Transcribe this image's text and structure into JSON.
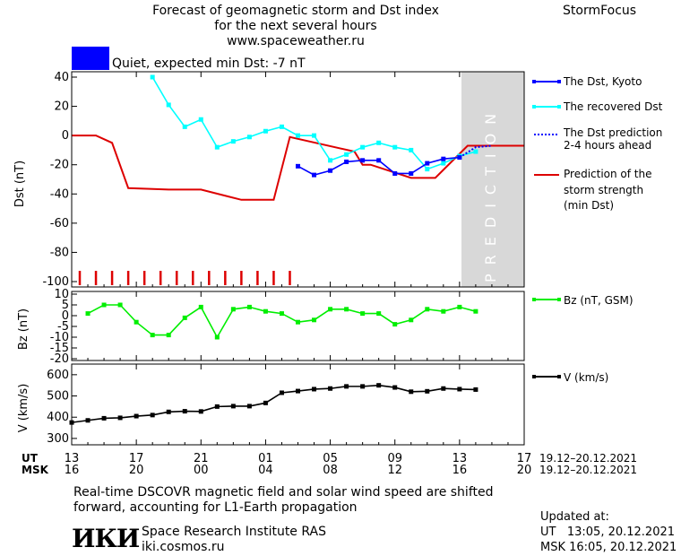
{
  "header": {
    "title_line1": "Forecast of geomagnetic storm and Dst index",
    "title_line2": "for the next several hours",
    "url": "www.spaceweather.ru",
    "brand": "StormFocus",
    "status_text": "Quiet, expected min Dst: -7 nT",
    "status_color": "#0000ff"
  },
  "legend": {
    "dst_kyoto": "The Dst, Kyoto",
    "dst_recovered": "The recovered Dst",
    "dst_prediction_1": "The Dst prediction",
    "dst_prediction_2": "2-4 hours ahead",
    "strength_1": "Prediction of the",
    "strength_2": "storm strength",
    "strength_3": "(min Dst)",
    "bz": "Bz (nT, GSM)",
    "v": "V (km/s)"
  },
  "prediction_label": "PREDICTION",
  "time_axis": {
    "ut_label": "UT",
    "msk_label": "MSK",
    "ut_ticks": [
      "13",
      "17",
      "21",
      "01",
      "05",
      "09",
      "13",
      "17"
    ],
    "msk_ticks": [
      "16",
      "20",
      "00",
      "04",
      "08",
      "12",
      "16",
      "20"
    ],
    "ut_range": "19.12–20.12.2021",
    "msk_range": "19.12–20.12.2021"
  },
  "footer": {
    "note_line1": "Real-time DSCOVR magnetic field and solar wind speed are shifted",
    "note_line2": "forward, accounting for L1-Earth propagation",
    "logo_text": "ИКИ",
    "institute": "Space Research Institute RAS",
    "site": "iki.cosmos.ru",
    "updated_label": "Updated at:",
    "updated_ut": "UT   13:05, 20.12.2021",
    "updated_msk": "MSK 16:05, 20.12.2021"
  },
  "colors": {
    "kyoto": "#0000ff",
    "recovered": "#00ffff",
    "prediction": "#0000ff",
    "strength": "#dd0000",
    "bz": "#00ee00",
    "v": "#000000",
    "prediction_band": "#d8d8d8"
  },
  "chart_data": [
    {
      "type": "line",
      "ylabel": "Dst (nT)",
      "ylim": [
        -100,
        40
      ],
      "yticks": [
        40,
        20,
        0,
        -20,
        -40,
        -60,
        -80,
        -100
      ],
      "x_unit": "hours since 13 UT 19.12.2021",
      "xlim": [
        0,
        28
      ],
      "prediction_band": [
        24.5,
        28
      ],
      "series": [
        {
          "name": "The Dst, Kyoto",
          "x": [
            14,
            15,
            16,
            17,
            18,
            19,
            20,
            21,
            22,
            23,
            24
          ],
          "y": [
            -21,
            -27,
            -24,
            -18,
            -17,
            -17,
            -26,
            -26,
            -19,
            -16,
            -15
          ]
        },
        {
          "name": "The recovered Dst",
          "x": [
            5,
            6,
            7,
            8,
            9,
            10,
            11,
            12,
            13,
            14,
            15,
            16,
            17,
            18,
            19,
            20,
            21,
            22,
            23,
            24,
            25
          ],
          "y": [
            40,
            21,
            6,
            11,
            -8,
            -4,
            -1,
            3,
            6,
            0,
            0,
            -17,
            -13,
            -8,
            -5,
            -8,
            -10,
            -23,
            -19,
            -14,
            -11
          ]
        },
        {
          "name": "The Dst prediction 2-4 hours ahead",
          "x": [
            24,
            25,
            26
          ],
          "y": [
            -15,
            -8,
            -7
          ]
        },
        {
          "name": "Prediction of the storm strength (min Dst)",
          "x": [
            0,
            1.5,
            2.5,
            3.5,
            6,
            8,
            10.5,
            11,
            12.5,
            13.5,
            17.5,
            18,
            18.5,
            21,
            22.5,
            24.5,
            28
          ],
          "y": [
            0,
            0,
            -5,
            -36,
            -37,
            -37,
            -44,
            -44,
            -44,
            -1,
            -11,
            -20,
            -20,
            -29,
            -29,
            -7,
            -7
          ]
        }
      ],
      "markers": {
        "name": "red ticks",
        "x": [
          0.5,
          1.5,
          2.5,
          3.5,
          4.5,
          5.5,
          6.5,
          7.5,
          8.5,
          9.5,
          10.5,
          11.5,
          12.5,
          13.5
        ]
      }
    },
    {
      "type": "line",
      "ylabel": "Bz (nT)",
      "ylim": [
        -20,
        10
      ],
      "yticks": [
        10,
        5,
        0,
        -5,
        -10,
        -15,
        -20
      ],
      "series": [
        {
          "name": "Bz (nT, GSM)",
          "x": [
            1,
            2,
            3,
            4,
            5,
            6,
            7,
            8,
            9,
            10,
            11,
            12,
            13,
            14,
            15,
            16,
            17,
            18,
            19,
            20,
            21,
            22,
            23,
            24,
            25
          ],
          "y": [
            1,
            5,
            5,
            -3,
            -9,
            -9,
            -1,
            4,
            -10,
            3,
            4,
            2,
            1,
            -3,
            -2,
            3,
            3,
            1,
            1,
            -4,
            -2,
            3,
            2,
            4,
            2
          ]
        }
      ]
    },
    {
      "type": "line",
      "ylabel": "V (km/s)",
      "ylim": [
        270,
        650
      ],
      "yticks": [
        600,
        500,
        400,
        300
      ],
      "series": [
        {
          "name": "V (km/s)",
          "x": [
            0,
            1,
            2,
            3,
            4,
            5,
            6,
            7,
            8,
            9,
            10,
            11,
            12,
            13,
            14,
            15,
            16,
            17,
            18,
            19,
            20,
            21,
            22,
            23,
            24,
            25
          ],
          "y": [
            375,
            385,
            395,
            397,
            405,
            410,
            425,
            428,
            427,
            450,
            452,
            452,
            467,
            515,
            523,
            532,
            535,
            545,
            545,
            550,
            540,
            520,
            522,
            535,
            532,
            530
          ]
        }
      ]
    }
  ]
}
